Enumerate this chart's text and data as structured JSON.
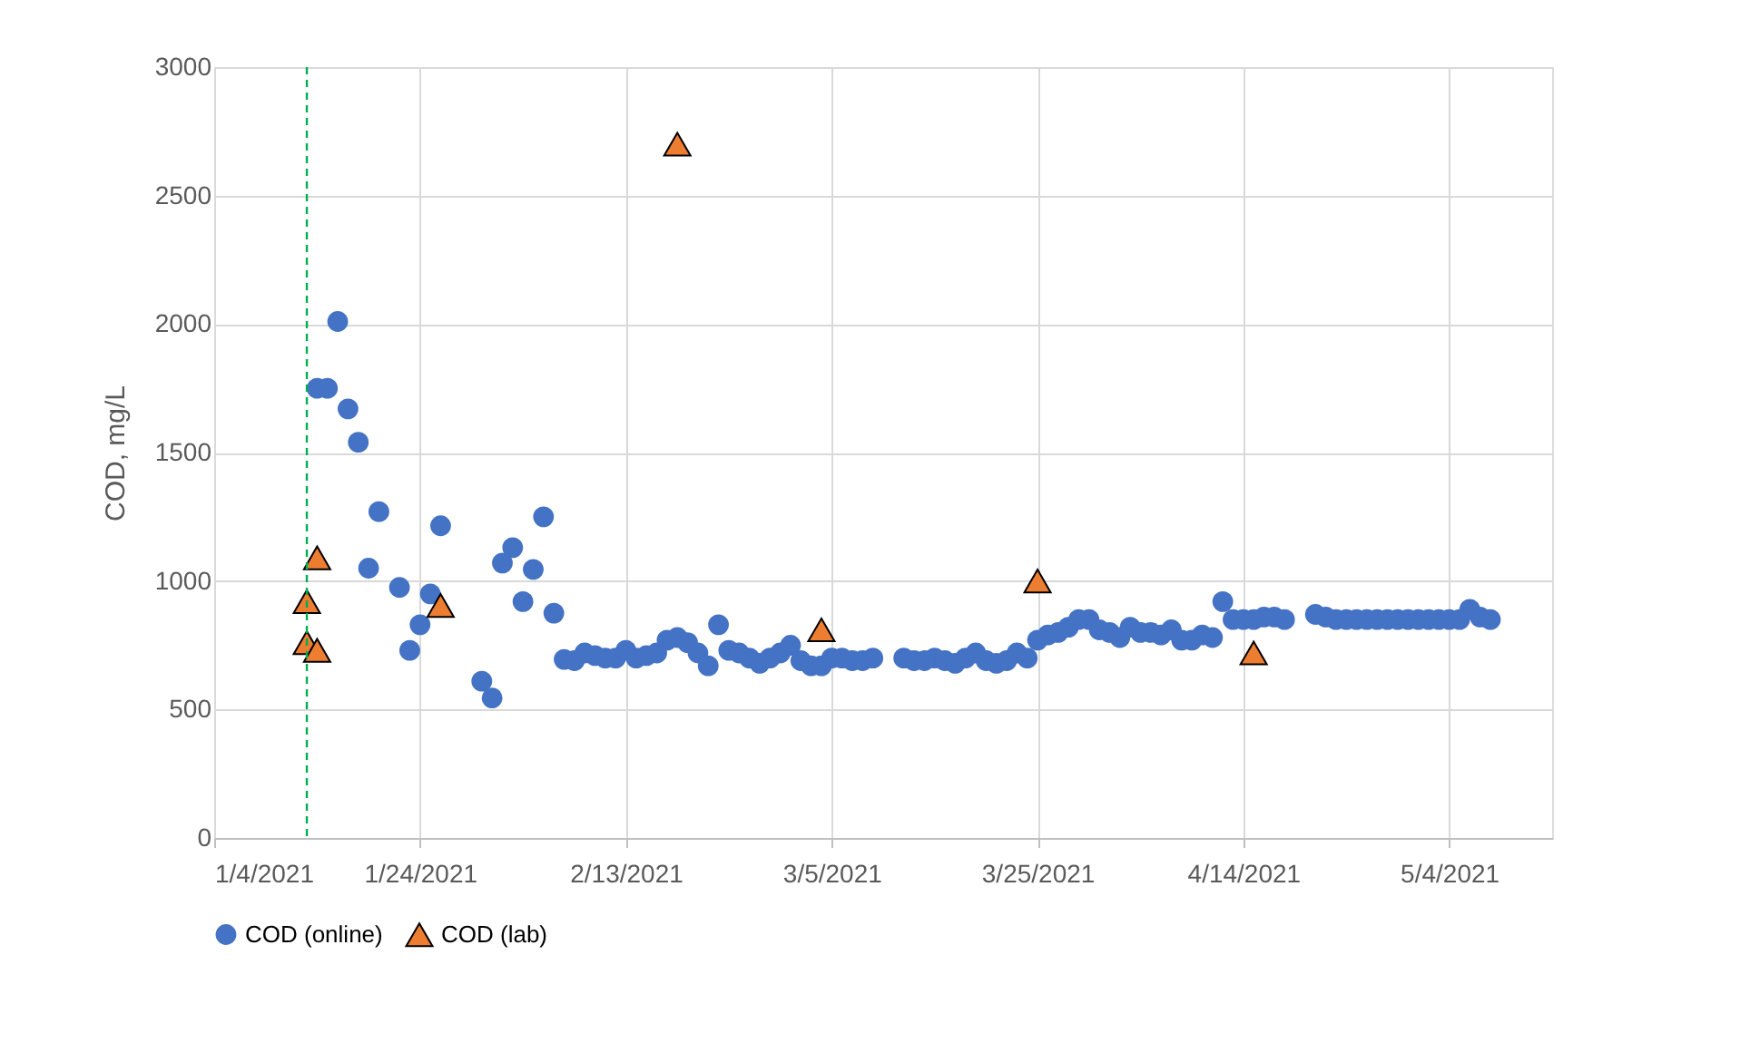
{
  "chart_data": {
    "type": "scatter",
    "ylabel": "COD, mg/L",
    "series": [
      {
        "name": "COD (online)",
        "color": "#4472c4",
        "marker": "circle",
        "x": [
          "2021-01-14",
          "2021-01-15",
          "2021-01-16",
          "2021-01-17",
          "2021-01-18",
          "2021-01-19",
          "2021-01-20",
          "2021-01-22",
          "2021-01-23",
          "2021-01-24",
          "2021-01-25",
          "2021-01-26",
          "2021-01-30",
          "2021-01-31",
          "2021-02-01",
          "2021-02-02",
          "2021-02-03",
          "2021-02-04",
          "2021-02-05",
          "2021-02-06",
          "2021-02-07",
          "2021-02-08",
          "2021-02-09",
          "2021-02-10",
          "2021-02-11",
          "2021-02-12",
          "2021-02-13",
          "2021-02-14",
          "2021-02-15",
          "2021-02-16",
          "2021-02-17",
          "2021-02-18",
          "2021-02-19",
          "2021-02-20",
          "2021-02-21",
          "2021-02-22",
          "2021-02-23",
          "2021-02-24",
          "2021-02-25",
          "2021-02-26",
          "2021-02-27",
          "2021-02-28",
          "2021-03-01",
          "2021-03-02",
          "2021-03-03",
          "2021-03-04",
          "2021-03-05",
          "2021-03-06",
          "2021-03-07",
          "2021-03-08",
          "2021-03-09",
          "2021-03-12",
          "2021-03-13",
          "2021-03-14",
          "2021-03-15",
          "2021-03-16",
          "2021-03-17",
          "2021-03-18",
          "2021-03-19",
          "2021-03-20",
          "2021-03-21",
          "2021-03-22",
          "2021-03-23",
          "2021-03-24",
          "2021-03-25",
          "2021-03-26",
          "2021-03-27",
          "2021-03-28",
          "2021-03-29",
          "2021-03-30",
          "2021-03-31",
          "2021-04-01",
          "2021-04-02",
          "2021-04-03",
          "2021-04-04",
          "2021-04-05",
          "2021-04-06",
          "2021-04-07",
          "2021-04-08",
          "2021-04-09",
          "2021-04-10",
          "2021-04-11",
          "2021-04-12",
          "2021-04-13",
          "2021-04-14",
          "2021-04-15",
          "2021-04-16",
          "2021-04-17",
          "2021-04-18",
          "2021-04-21",
          "2021-04-22",
          "2021-04-23",
          "2021-04-24",
          "2021-04-25",
          "2021-04-26",
          "2021-04-27",
          "2021-04-28",
          "2021-04-29",
          "2021-04-30",
          "2021-05-01",
          "2021-05-02",
          "2021-05-03",
          "2021-05-04",
          "2021-05-05",
          "2021-05-06",
          "2021-05-07",
          "2021-05-08"
        ],
        "values": [
          1750,
          1750,
          2010,
          1670,
          1540,
          1050,
          1270,
          975,
          730,
          830,
          950,
          1215,
          610,
          545,
          1070,
          1130,
          920,
          1045,
          1250,
          875,
          695,
          690,
          720,
          710,
          700,
          700,
          730,
          700,
          710,
          720,
          770,
          780,
          760,
          720,
          670,
          830,
          730,
          720,
          700,
          680,
          700,
          720,
          750,
          690,
          670,
          670,
          700,
          700,
          690,
          690,
          700,
          700,
          690,
          690,
          700,
          690,
          680,
          700,
          720,
          690,
          680,
          690,
          720,
          700,
          770,
          790,
          800,
          820,
          850,
          850,
          810,
          800,
          780,
          820,
          800,
          800,
          790,
          810,
          770,
          770,
          790,
          780,
          920,
          850,
          850,
          850,
          860,
          860,
          850,
          870,
          860,
          850,
          850,
          850,
          850,
          850,
          850,
          850,
          850,
          850,
          850,
          850,
          850,
          850,
          890,
          860,
          850
        ]
      },
      {
        "name": "COD (lab)",
        "color": "#ed7d31",
        "marker": "triangle",
        "x": [
          "2021-01-13",
          "2021-01-13",
          "2021-01-14",
          "2021-01-14",
          "2021-01-26",
          "2021-02-18",
          "2021-03-04",
          "2021-03-25",
          "2021-04-15"
        ],
        "values": [
          760,
          920,
          1090,
          730,
          905,
          2700,
          810,
          1000,
          720
        ]
      }
    ],
    "xlim": [
      "2021-01-04",
      "2021-05-14"
    ],
    "xticks": [
      {
        "value": "2021-01-04",
        "label": "1/4/2021"
      },
      {
        "value": "2021-01-24",
        "label": "1/24/2021"
      },
      {
        "value": "2021-02-13",
        "label": "2/13/2021"
      },
      {
        "value": "2021-03-05",
        "label": "3/5/2021"
      },
      {
        "value": "2021-03-25",
        "label": "3/25/2021"
      },
      {
        "value": "2021-04-14",
        "label": "4/14/2021"
      },
      {
        "value": "2021-05-04",
        "label": "5/4/2021"
      }
    ],
    "ylim": [
      0,
      3000
    ],
    "yticks": [
      0,
      500,
      1000,
      1500,
      2000,
      2500,
      3000
    ],
    "ref_lines": [
      {
        "axis": "x",
        "value": "2021-01-13",
        "color": "#00b050",
        "line_style": "dashed"
      }
    ],
    "grid": true,
    "legend": "bottom"
  }
}
